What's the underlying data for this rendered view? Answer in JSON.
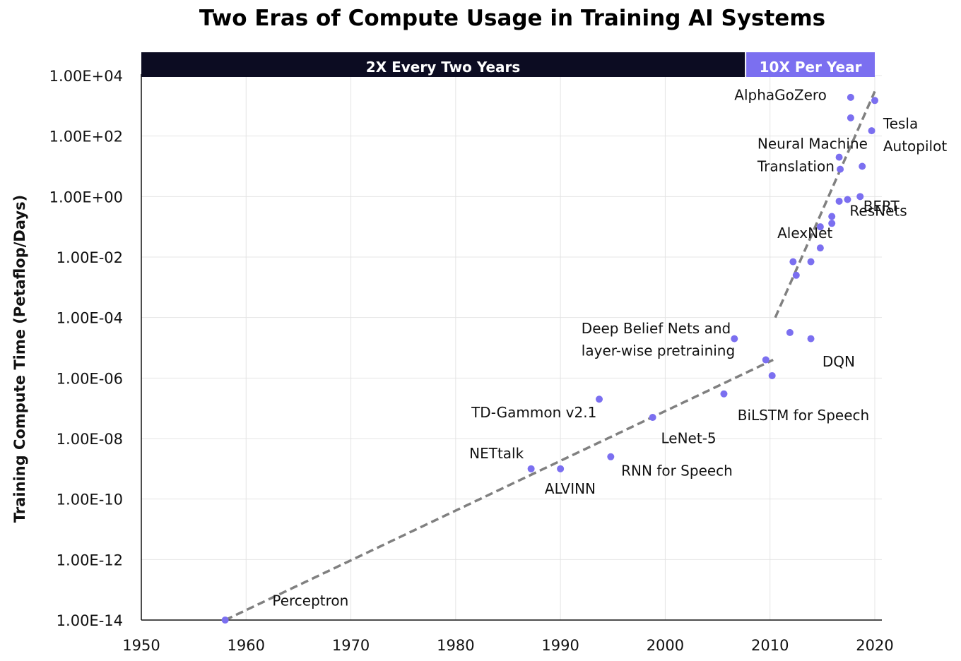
{
  "colors": {
    "era1": "#0c0c22",
    "era2": "#7b6ff0",
    "point": "#7b6ff0",
    "trend": "#808080",
    "grid": "#e4e4e4"
  },
  "chart_data": {
    "type": "scatter",
    "title": "Two Eras of Compute Usage in Training AI Systems",
    "xlabel": "",
    "ylabel": "Training Compute Time (Petaflop/Days)",
    "y_scale": "log10",
    "xlim": [
      1950,
      2020
    ],
    "ylim": [
      1e-14,
      10000
    ],
    "grid": true,
    "x_ticks": [
      "1950",
      "1960",
      "1970",
      "1980",
      "1990",
      "2000",
      "2010",
      "2020"
    ],
    "y_ticks": [
      "1.00E+04",
      "1.00E+02",
      "1.00E+00",
      "1.00E-02",
      "1.00E-04",
      "1.00E-06",
      "1.00E-08",
      "1.00E-10",
      "1.00E-12",
      "1.00E-14"
    ],
    "eras": [
      {
        "label": "2X Every Two Years",
        "start": 1950,
        "end": 2007.6
      },
      {
        "label": "10X Per Year",
        "start": 2007.6,
        "end": 2020
      }
    ],
    "trend_lines": [
      {
        "from": [
          1958,
          1e-14
        ],
        "to": [
          2010.3,
          4e-06
        ]
      },
      {
        "from": [
          2010.5,
          0.0001
        ],
        "to": [
          2020,
          3000
        ]
      }
    ],
    "series": [
      {
        "points": [
          {
            "x": 1958,
            "y": 1e-14
          },
          {
            "x": 1987.2,
            "y": 1e-09
          },
          {
            "x": 1990,
            "y": 1e-09
          },
          {
            "x": 1993.7,
            "y": 2e-07
          },
          {
            "x": 1994.8,
            "y": 2.5e-09
          },
          {
            "x": 1998.8,
            "y": 5e-08
          },
          {
            "x": 2005.6,
            "y": 3e-07
          },
          {
            "x": 2006.6,
            "y": 2e-05
          },
          {
            "x": 2009.6,
            "y": 4e-06
          },
          {
            "x": 2010.2,
            "y": 1.2e-06
          },
          {
            "x": 2011.9,
            "y": 3.2e-05
          },
          {
            "x": 2013.9,
            "y": 2e-05
          },
          {
            "x": 2012.2,
            "y": 0.007
          },
          {
            "x": 2012.5,
            "y": 0.0025
          },
          {
            "x": 2013.9,
            "y": 0.007
          },
          {
            "x": 2014.8,
            "y": 0.02
          },
          {
            "x": 2014.8,
            "y": 0.1
          },
          {
            "x": 2015.9,
            "y": 0.13
          },
          {
            "x": 2015.9,
            "y": 0.22
          },
          {
            "x": 2016.6,
            "y": 0.7
          },
          {
            "x": 2017.4,
            "y": 0.8
          },
          {
            "x": 2018.6,
            "y": 1
          },
          {
            "x": 2016.7,
            "y": 8
          },
          {
            "x": 2016.6,
            "y": 20
          },
          {
            "x": 2018.8,
            "y": 10
          },
          {
            "x": 2017.7,
            "y": 400
          },
          {
            "x": 2019.7,
            "y": 150
          },
          {
            "x": 2017.7,
            "y": 1900
          },
          {
            "x": 2020,
            "y": 1500
          }
        ]
      }
    ],
    "annotations": [
      {
        "text": "Perceptron",
        "x": 1962.5,
        "y": 3e-14
      },
      {
        "text": "NETtalk",
        "x": 1981.3,
        "y": 2.2e-09
      },
      {
        "text": "ALVINN",
        "x": 1988.5,
        "y": 1.5e-10
      },
      {
        "text": "TD-Gammon v2.1",
        "x": 1981.5,
        "y": 5e-08
      },
      {
        "text": "RNN for Speech",
        "x": 1995.8,
        "y": 6e-10
      },
      {
        "text": "LeNet-5",
        "x": 1999.6,
        "y": 7e-09
      },
      {
        "text": "BiLSTM for Speech",
        "x": 2006.9,
        "y": 4e-08
      },
      {
        "text": "Deep Belief Nets and",
        "x": 1992,
        "y": 3e-05
      },
      {
        "text": "layer-wise pretraining",
        "x": 1992,
        "y": 5.5e-06
      },
      {
        "text": "DQN",
        "x": 2015,
        "y": 2.4e-06
      },
      {
        "text": "AlexNet",
        "x": 2010.7,
        "y": 0.043
      },
      {
        "text": "ResNets",
        "x": 2017.6,
        "y": 0.23
      },
      {
        "text": "Neural Machine",
        "x": 2008.8,
        "y": 38
      },
      {
        "text": "Translation",
        "x": 2008.8,
        "y": 6.8
      },
      {
        "text": "BERT",
        "x": 2018.9,
        "y": 0.33
      },
      {
        "text": "Tesla",
        "x": 2020.8,
        "y": 178
      },
      {
        "text": "Autopilot",
        "x": 2020.8,
        "y": 32
      },
      {
        "text": "AlphaGoZero",
        "x": 2006.6,
        "y": 1580
      }
    ]
  }
}
